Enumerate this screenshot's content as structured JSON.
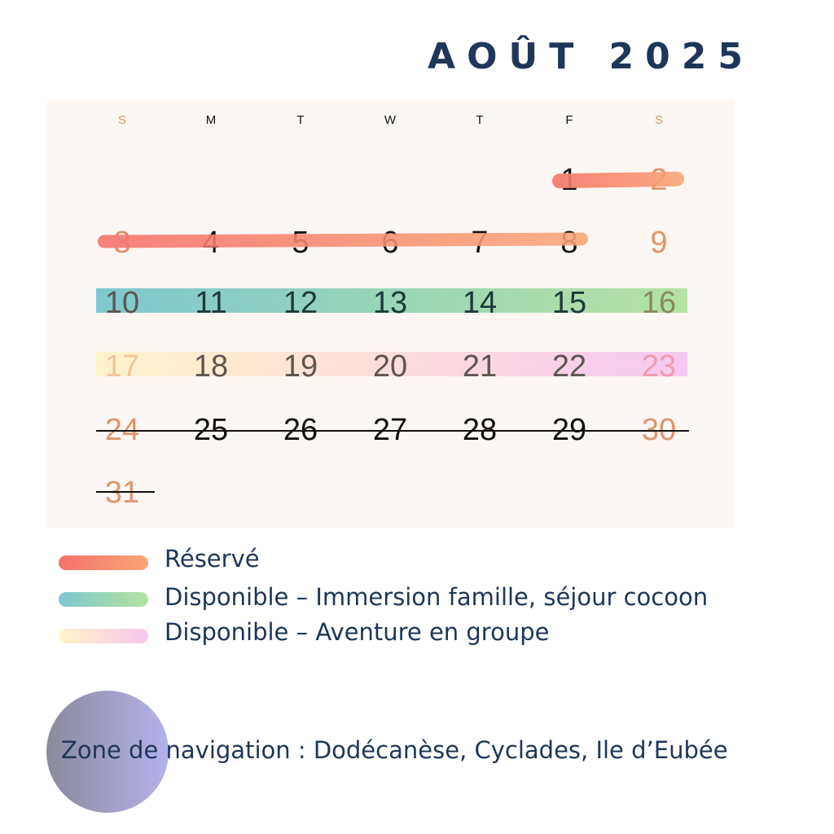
{
  "title": "AOÛT 2025",
  "weekdays": [
    "S",
    "M",
    "T",
    "W",
    "T",
    "F",
    "S"
  ],
  "days": {
    "d1": "1",
    "d2": "2",
    "d3": "3",
    "d4": "4",
    "d5": "5",
    "d6": "6",
    "d7": "7",
    "d8": "8",
    "d9": "9",
    "d10": "10",
    "d11": "11",
    "d12": "12",
    "d13": "13",
    "d14": "14",
    "d15": "15",
    "d16": "16",
    "d17": "17",
    "d18": "18",
    "d19": "19",
    "d20": "20",
    "d21": "21",
    "d22": "22",
    "d23": "23",
    "d24": "24",
    "d25": "25",
    "d26": "26",
    "d27": "27",
    "d28": "28",
    "d29": "29",
    "d30": "30",
    "d31": "31"
  },
  "legend": {
    "reserved": "Réservé",
    "family": "Disponible – Immersion famille, séjour cocoon",
    "group": "Disponible – Aventure en groupe"
  },
  "zone": "Zone de navigation : Dodécanèse, Cyclades, Ile d’Eubée",
  "colors": {
    "title": "#1e3658",
    "reserved": [
      "#f4716a",
      "#f9a777"
    ],
    "family": [
      "#7ec8cf",
      "#b4e3a1"
    ],
    "group": [
      "#fff3c9",
      "#f7c8f0"
    ],
    "weekend": "#e0946c"
  }
}
